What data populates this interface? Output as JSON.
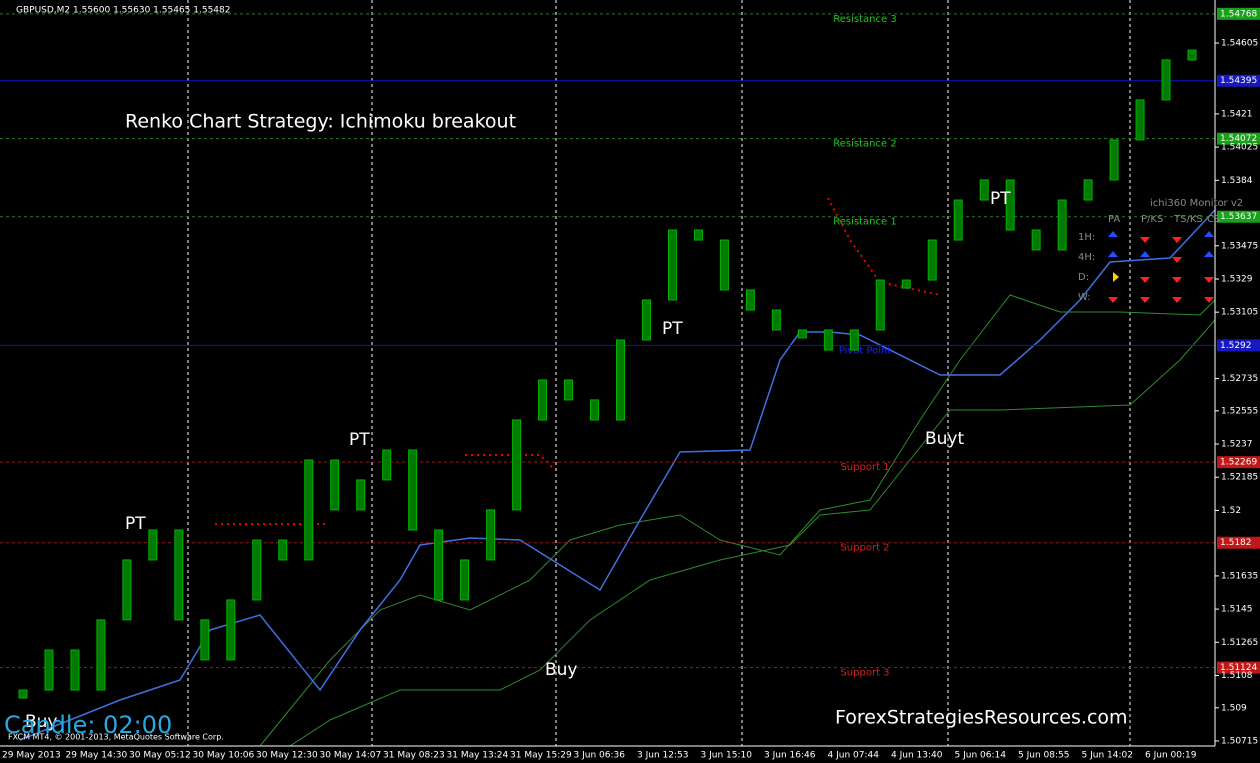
{
  "header": "GBPUSD,M2  1.55600 1.55630 1.55465 1.55482",
  "title": "Renko Chart Strategy: Ichimoku breakout",
  "annotations": {
    "pt": [
      "PT",
      "PT",
      "PT",
      "PT"
    ],
    "buy": [
      "Buy",
      "Buy",
      "Buyt"
    ],
    "candle_timer": "Candle: 02:00",
    "watermark": "ForexStrategiesResources.com",
    "copyright": "FXCM MT4, © 2001-2013, MetaQuotes Software Corp."
  },
  "monitor": {
    "title": "ichi360 Monitor v2",
    "columns": [
      "PA",
      "P/KS",
      "TS/KS",
      "CS"
    ],
    "rows": [
      "1H:",
      "4H:",
      "D:",
      "W:"
    ]
  },
  "chart_data": {
    "type": "candlestick",
    "ylim": [
      1.50687,
      1.54845
    ],
    "yticks": [
      1.54605,
      1.5421,
      1.54025,
      1.5384,
      1.53475,
      1.5329,
      1.53105,
      1.52735,
      1.52555,
      1.5237,
      1.52185,
      1.52,
      1.51635,
      1.5145,
      1.51265,
      1.5108,
      1.509,
      1.50715
    ],
    "categories": [
      "29 May 2013",
      "29 May 14:30",
      "30 May 05:12",
      "30 May 10:06",
      "30 May 12:30",
      "30 May 14:07",
      "31 May 08:23",
      "31 May 13:24",
      "31 May 15:29",
      "3 Jun 06:36",
      "3 Jun 12:53",
      "3 Jun 15:10",
      "3 Jun 16:46",
      "4 Jun 07:44",
      "4 Jun 13:40",
      "5 Jun 06:14",
      "5 Jun 08:55",
      "5 Jun 14:02",
      "6 Jun 00:19"
    ],
    "closes": [
      1.50999,
      1.51222,
      1.50999,
      1.5139,
      1.51724,
      1.51891,
      1.5139,
      1.51167,
      1.51501,
      1.51835,
      1.51724,
      1.52281,
      1.52003,
      1.5217,
      1.52337,
      1.51891,
      1.51501,
      1.51724,
      1.52003,
      1.52504,
      1.52727,
      1.52616,
      1.52504,
      1.5295,
      1.53173,
      1.53563,
      1.53507,
      1.53229,
      1.53117,
      1.53006,
      1.53006,
      1.52894,
      1.53006,
      1.53284,
      1.53284,
      1.53507,
      1.5373,
      1.53842,
      1.53563,
      1.53452,
      1.5373,
      1.53842,
      1.54065,
      1.54288,
      1.54511,
      1.54566
    ],
    "color": "#007a00",
    "levels": [
      {
        "name": "Resistance 3",
        "value": 1.54768,
        "color": "#1ec81e"
      },
      {
        "name": null,
        "value": 1.54395,
        "color": "#2020ff"
      },
      {
        "name": "Resistance 2",
        "value": 1.54072,
        "color": "#1ec81e"
      },
      {
        "name": "Resistance 1",
        "value": 1.53637,
        "color": "#1ec81e"
      },
      {
        "name": "Pivot Point",
        "value": 1.5292,
        "color": "#2020ff"
      },
      {
        "name": "Support 1",
        "value": 1.52269,
        "color": "#d02020"
      },
      {
        "name": "Support 2",
        "value": 1.5182,
        "color": "#d02020"
      },
      {
        "name": "Support 3",
        "value": 1.51124,
        "color": "#d02020"
      }
    ]
  }
}
